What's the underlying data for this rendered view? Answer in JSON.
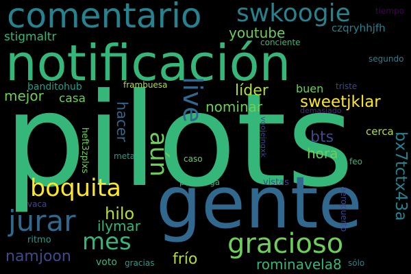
{
  "words": {
    "pilots": "pilots",
    "gente": "gente",
    "notificacion": "notificación",
    "comentario": "comentario",
    "swkoogie": "swkoogie",
    "gracioso": "gracioso",
    "boquita": "boquita",
    "jurar": "jurar",
    "live": "live",
    "aun": "aún",
    "mes": "mes",
    "bx7tctx43a": "bx7tctx43a",
    "sweetjklar": "sweetjklar",
    "nominar": "nominar",
    "lider": "líder",
    "youtube": "youtube",
    "hilo": "hilo",
    "namjoon": "namjoon",
    "ilymar": "ilymar",
    "frio": "frío",
    "rominavela8": "rominavela8",
    "bts": "bts",
    "hora": "hora",
    "hacer": "hacer",
    "mejor": "mejor",
    "casa": "casa",
    "buen": "buen",
    "stigmaltr": "stigmaltr",
    "czqryhhjfh": "czqryhhjfh",
    "banditohub": "banditohub",
    "voto": "voto",
    "tiempo": "tiempo",
    "conciente": "conciente",
    "segundo": "segundo",
    "frambuesa": "frambuesa",
    "triste": "triste",
    "demasiado": "demasiado",
    "cerca": "cerca",
    "heft3zplxs": "heft3zplxs",
    "voojejngxk": "voojejngxk",
    "meta": "meta",
    "caso": "caso",
    "feo": "feo",
    "pachanga": "pachanga",
    "vistas": "vistas",
    "vaca": "vaca",
    "aeropuerto": "aeropuerto",
    "ritmo": "ritmo",
    "gracias": "gracias",
    "solo": "sólo"
  },
  "colors": {
    "background": "#000000",
    "green": "#35b779",
    "blue": "#31688e",
    "teal": "#26828e",
    "cyan": "#1f9e89",
    "lime": "#6ece58",
    "yellow": "#fde725",
    "yellowgreen": "#b5de2b",
    "navy": "#3e4a89",
    "purple": "#482878",
    "darkpurple": "#440154"
  }
}
